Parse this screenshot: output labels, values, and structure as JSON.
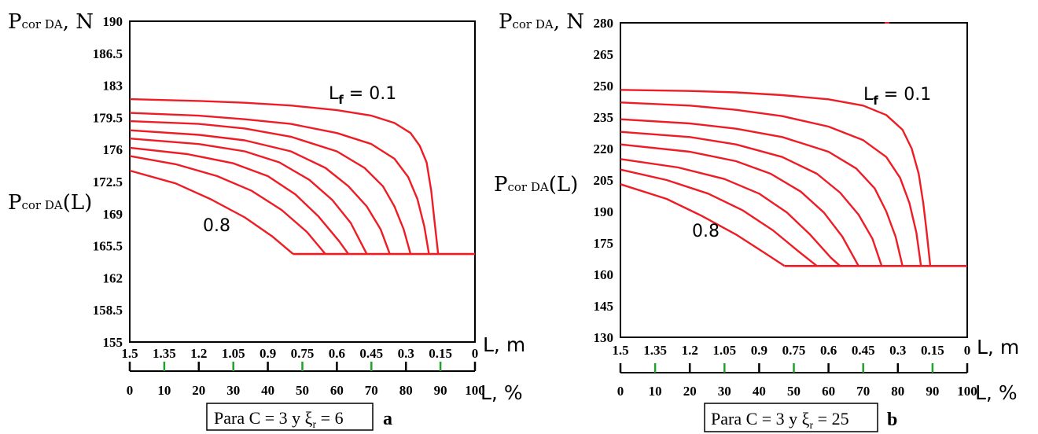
{
  "chart_data": [
    {
      "panel": "a",
      "type": "line",
      "ylabel_main": "P",
      "ylabel_sub": "cor DA",
      "ylabel_unit": ", N",
      "ycurve_main": "P",
      "ycurve_sub": "cor DA",
      "ycurve_arg": "(L)",
      "ylim": [
        155,
        190
      ],
      "yticks": [
        "155",
        "158.5",
        "162",
        "165.5",
        "169",
        "172.5",
        "176",
        "179.5",
        "183",
        "186.5",
        "190"
      ],
      "x_m_ticks": [
        "1.5",
        "1.35",
        "1.2",
        "1.05",
        "0.9",
        "0.75",
        "0.6",
        "0.45",
        "0.3",
        "0.15",
        "0"
      ],
      "x_m_unit": "L, m",
      "x_pct_ticks": [
        "0",
        "10",
        "20",
        "30",
        "40",
        "50",
        "60",
        "70",
        "80",
        "90",
        "100"
      ],
      "x_pct_unit": "L, %",
      "xlim_m": [
        1.5,
        0
      ],
      "annotation_top_main": "L",
      "annotation_top_sub": "f",
      "annotation_top_val": " = 0.1",
      "annotation_bottom": "0.8",
      "caption": "Para C = 3 y ξ",
      "caption_sub": "r",
      "caption_val": " = 6",
      "caption_letter": "a",
      "grid": false,
      "floor": 164.6,
      "series": [
        {
          "lf": 0.1,
          "x": [
            1.5,
            1.2,
            1.0,
            0.8,
            0.6,
            0.45,
            0.35,
            0.28,
            0.24,
            0.21,
            0.19,
            0.175,
            0.16
          ],
          "y": [
            181.5,
            181.3,
            181.1,
            180.8,
            180.3,
            179.7,
            178.9,
            177.8,
            176.4,
            174.6,
            171.5,
            168.0,
            164.6
          ]
        },
        {
          "lf": 0.2,
          "x": [
            1.5,
            1.2,
            1.0,
            0.8,
            0.6,
            0.45,
            0.35,
            0.29,
            0.25,
            0.22,
            0.2
          ],
          "y": [
            180.0,
            179.7,
            179.3,
            178.8,
            177.8,
            176.6,
            175.0,
            173.0,
            170.6,
            167.6,
            164.6
          ]
        },
        {
          "lf": 0.3,
          "x": [
            1.5,
            1.2,
            1.0,
            0.8,
            0.6,
            0.48,
            0.4,
            0.35,
            0.31,
            0.28
          ],
          "y": [
            179.1,
            178.8,
            178.3,
            177.4,
            175.8,
            174.0,
            172.0,
            169.8,
            167.3,
            164.6
          ]
        },
        {
          "lf": 0.4,
          "x": [
            1.5,
            1.2,
            1.0,
            0.8,
            0.65,
            0.55,
            0.47,
            0.41,
            0.37
          ],
          "y": [
            178.1,
            177.6,
            177.0,
            175.8,
            174.0,
            172.0,
            169.8,
            167.3,
            164.6
          ]
        },
        {
          "lf": 0.5,
          "x": [
            1.5,
            1.2,
            1.0,
            0.85,
            0.72,
            0.62,
            0.54,
            0.47
          ],
          "y": [
            177.2,
            176.6,
            175.8,
            174.6,
            172.7,
            170.5,
            168.0,
            164.6
          ]
        },
        {
          "lf": 0.6,
          "x": [
            1.5,
            1.25,
            1.05,
            0.9,
            0.78,
            0.68,
            0.59,
            0.55
          ],
          "y": [
            176.2,
            175.5,
            174.5,
            173.1,
            171.1,
            168.7,
            166.0,
            164.6
          ]
        },
        {
          "lf": 0.7,
          "x": [
            1.5,
            1.3,
            1.12,
            0.97,
            0.84,
            0.73,
            0.65
          ],
          "y": [
            175.3,
            174.4,
            173.1,
            171.5,
            169.4,
            167.0,
            164.6
          ]
        },
        {
          "lf": 0.8,
          "x": [
            1.5,
            1.3,
            1.15,
            1.0,
            0.88,
            0.79
          ],
          "y": [
            173.7,
            172.3,
            170.6,
            168.6,
            166.5,
            164.6
          ]
        }
      ]
    },
    {
      "panel": "b",
      "type": "line",
      "ylabel_main": "P",
      "ylabel_sub": "cor DA",
      "ylabel_unit": ", N",
      "ycurve_main": "P",
      "ycurve_sub": "cor DA",
      "ycurve_arg": "(L)",
      "ylim": [
        130,
        280
      ],
      "yticks": [
        "130",
        "145",
        "160",
        "175",
        "190",
        "205",
        "220",
        "235",
        "250",
        "265",
        "280"
      ],
      "x_m_ticks": [
        "1.5",
        "1.35",
        "1.2",
        "1.05",
        "0.9",
        "0.75",
        "0.6",
        "0.45",
        "0.3",
        "0.15",
        "0"
      ],
      "x_m_unit": "L, m",
      "x_pct_ticks": [
        "0",
        "10",
        "20",
        "30",
        "40",
        "50",
        "60",
        "70",
        "80",
        "90",
        "100"
      ],
      "x_pct_unit": "L, %",
      "xlim_m": [
        1.5,
        0
      ],
      "annotation_top_main": "L",
      "annotation_top_sub": "f",
      "annotation_top_val": " = 0.1",
      "annotation_bottom": "0.8",
      "caption": "Para C = 3 y ξ",
      "caption_sub": "r",
      "caption_val": " = 25",
      "caption_letter": "b",
      "grid": false,
      "floor": 164,
      "series": [
        {
          "lf": 0.1,
          "x": [
            1.5,
            1.2,
            1.0,
            0.8,
            0.6,
            0.45,
            0.35,
            0.28,
            0.24,
            0.21,
            0.19,
            0.175,
            0.16
          ],
          "y": [
            248,
            247.5,
            246.8,
            245.5,
            243.5,
            240.5,
            236,
            229,
            220,
            208,
            194,
            180,
            164
          ]
        },
        {
          "lf": 0.2,
          "x": [
            1.5,
            1.2,
            1.0,
            0.8,
            0.6,
            0.45,
            0.35,
            0.29,
            0.25,
            0.22,
            0.2
          ],
          "y": [
            242,
            240.5,
            238.5,
            235.5,
            230.5,
            224,
            216,
            206,
            194,
            180,
            164
          ]
        },
        {
          "lf": 0.3,
          "x": [
            1.5,
            1.2,
            1.0,
            0.8,
            0.6,
            0.48,
            0.4,
            0.35,
            0.31,
            0.28
          ],
          "y": [
            234,
            232,
            229.5,
            225.5,
            218.5,
            210.5,
            201,
            190,
            178,
            164
          ]
        },
        {
          "lf": 0.4,
          "x": [
            1.5,
            1.2,
            1.0,
            0.8,
            0.65,
            0.55,
            0.47,
            0.41,
            0.37
          ],
          "y": [
            228,
            225.5,
            222,
            216,
            208,
            199,
            188.5,
            177,
            164
          ]
        },
        {
          "lf": 0.5,
          "x": [
            1.5,
            1.2,
            1.0,
            0.85,
            0.72,
            0.62,
            0.54,
            0.47
          ],
          "y": [
            222,
            218.5,
            214,
            208,
            199.5,
            189.5,
            178,
            164
          ]
        },
        {
          "lf": 0.6,
          "x": [
            1.5,
            1.25,
            1.05,
            0.9,
            0.78,
            0.68,
            0.59,
            0.55
          ],
          "y": [
            215,
            211,
            205.5,
            198.5,
            189.5,
            179,
            168,
            164
          ]
        },
        {
          "lf": 0.7,
          "x": [
            1.5,
            1.3,
            1.12,
            0.97,
            0.84,
            0.73,
            0.65
          ],
          "y": [
            210,
            205,
            198.5,
            190.5,
            181,
            171,
            164
          ]
        },
        {
          "lf": 0.8,
          "x": [
            1.5,
            1.3,
            1.15,
            1.0,
            0.88,
            0.79
          ],
          "y": [
            203,
            196,
            188,
            179,
            170.5,
            164
          ]
        }
      ]
    }
  ],
  "colors": {
    "curve": "#ee1c25",
    "axis": "#000000",
    "tick_green": "#1fa12b"
  }
}
